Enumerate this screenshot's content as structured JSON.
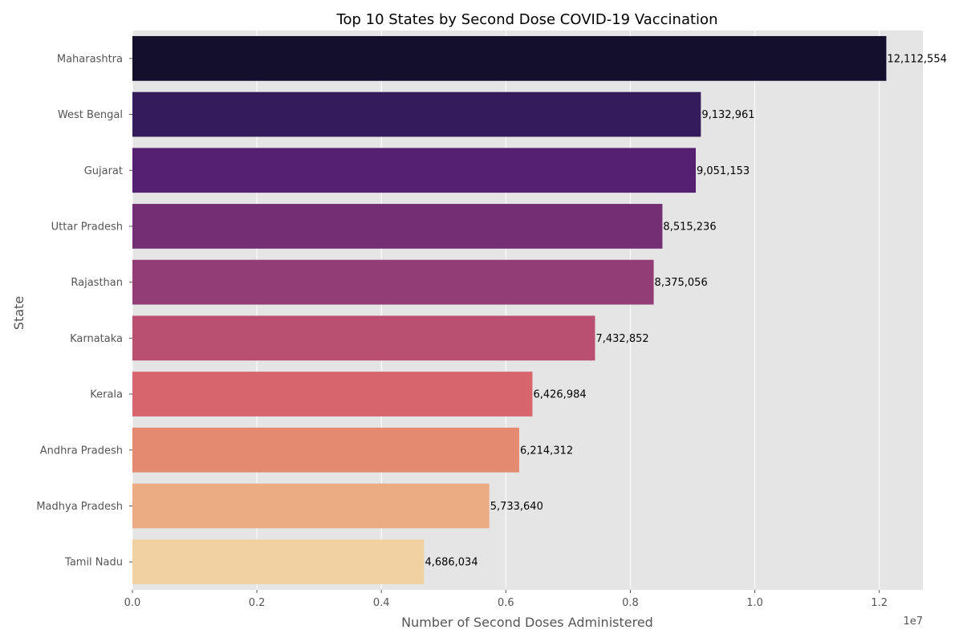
{
  "chart_data": {
    "type": "bar",
    "orientation": "horizontal",
    "title": "Top 10 States by Second Dose COVID-19 Vaccination",
    "xlabel": "Number of Second Doses Administered",
    "ylabel": "State",
    "x_offset_label": "1e7",
    "xlim": [
      0,
      12700000
    ],
    "x_ticks": [
      0,
      2000000,
      4000000,
      6000000,
      8000000,
      10000000,
      12000000
    ],
    "x_tick_labels": [
      "0.0",
      "0.2",
      "0.4",
      "0.6",
      "0.8",
      "1.0",
      "1.2"
    ],
    "grid": true,
    "categories": [
      "Maharashtra",
      "West Bengal",
      "Gujarat",
      "Uttar Pradesh",
      "Rajasthan",
      "Karnataka",
      "Kerala",
      "Andhra Pradesh",
      "Madhya Pradesh",
      "Tamil Nadu"
    ],
    "values": [
      12112554,
      9132961,
      9051153,
      8515236,
      8375056,
      7432852,
      6426984,
      6214312,
      5733640,
      4686034
    ],
    "value_labels": [
      "12,112,554",
      "9,132,961",
      "9,051,153",
      "8,515,236",
      "8,375,056",
      "7,432,852",
      "6,426,984",
      "6,214,312",
      "5,733,640",
      "4,686,034"
    ],
    "colors": [
      "#140f2d",
      "#341b5c",
      "#55206f",
      "#742f74",
      "#923d76",
      "#b94f71",
      "#d6656e",
      "#e48a70",
      "#ecac83",
      "#f1d0a2"
    ]
  }
}
